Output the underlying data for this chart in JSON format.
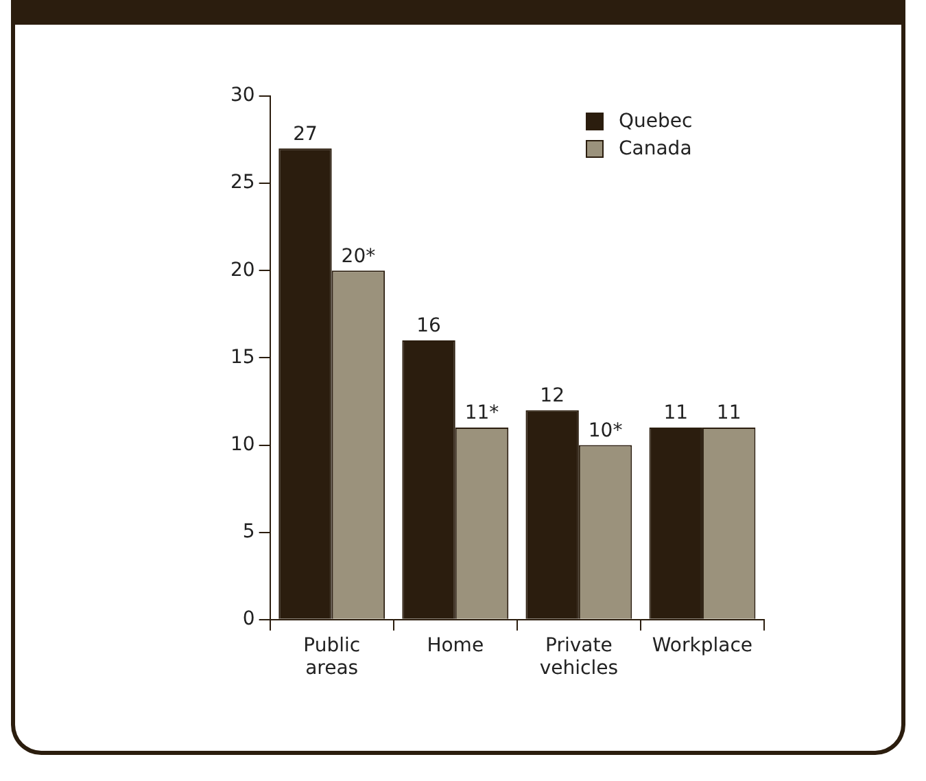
{
  "chart_data": {
    "type": "bar",
    "categories": [
      "Public areas",
      "Home",
      "Private vehicles",
      "Workplace"
    ],
    "series": [
      {
        "name": "Quebec",
        "color": "#2b1d0e",
        "values": [
          27,
          16,
          12,
          11
        ],
        "value_labels": [
          "27",
          "16",
          "12",
          "11"
        ]
      },
      {
        "name": "Canada",
        "color": "#9b927c",
        "values": [
          20,
          11,
          10,
          11
        ],
        "value_labels": [
          "20*",
          "11*",
          "10*",
          "11"
        ]
      }
    ],
    "ylim": [
      0,
      30
    ],
    "yticks": [
      0,
      5,
      10,
      15,
      20,
      25,
      30
    ],
    "grid": false,
    "legend": "top right"
  }
}
